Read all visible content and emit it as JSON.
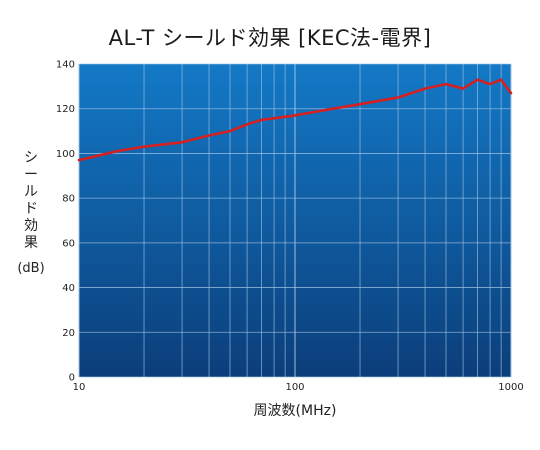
{
  "chart_data": {
    "type": "line",
    "title": "AL-T シールド効果 [KEC法-電界]",
    "xlabel": "周波数(MHz)",
    "ylabel": "シールド効果",
    "ylabel_unit": "(dB)",
    "x_scale": "log",
    "xlim": [
      10,
      1000
    ],
    "ylim": [
      0,
      140
    ],
    "x_ticks": [
      "10",
      "100",
      "1000"
    ],
    "y_ticks": [
      "0",
      "20",
      "40",
      "60",
      "80",
      "100",
      "120",
      "140"
    ],
    "grid": true,
    "legend": "none",
    "series": [
      {
        "color": "#d42020",
        "x": [
          10,
          15,
          20,
          30,
          40,
          50,
          60,
          70,
          100,
          150,
          200,
          300,
          400,
          500,
          600,
          700,
          800,
          900,
          1000
        ],
        "y": [
          97,
          101,
          103,
          105,
          108,
          110,
          113,
          115,
          117,
          120,
          122,
          125,
          129,
          131,
          129,
          133,
          131,
          133,
          127
        ]
      }
    ],
    "colors": {
      "plot_top": "#1379c6",
      "plot_bottom": "#0b3e7a",
      "grid": "#9fc1e3",
      "line": "#d42020"
    }
  }
}
